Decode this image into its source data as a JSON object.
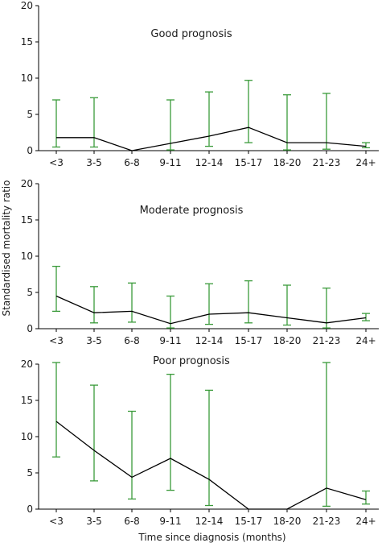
{
  "figure": {
    "xlabel": "Time since diagnosis (months)",
    "ylabel": "Standardised mortality ratio",
    "colors": {
      "ci": "#3a9a3a",
      "line": "#000000",
      "axis": "#000000"
    }
  },
  "chart_data": [
    {
      "type": "line",
      "title": "Good prognosis",
      "categories": [
        "<3",
        "3-5",
        "6-8",
        "9-11",
        "12-14",
        "15-17",
        "18-20",
        "21-23",
        "24+"
      ],
      "yticks": [
        0,
        5,
        10,
        15,
        20
      ],
      "ylim": [
        0,
        20
      ],
      "series": [
        {
          "values": [
            1.8,
            1.8,
            0,
            1.0,
            2.0,
            3.2,
            1.1,
            1.1,
            0.6
          ],
          "lower": [
            0.5,
            0.5,
            null,
            0.1,
            0.6,
            1.1,
            0.1,
            0.2,
            0.4
          ],
          "upper": [
            7.0,
            7.3,
            null,
            7.0,
            8.1,
            9.7,
            7.7,
            7.9,
            1.1
          ]
        }
      ],
      "grid": false
    },
    {
      "type": "line",
      "title": "Moderate prognosis",
      "categories": [
        "<3",
        "3-5",
        "6-8",
        "9-11",
        "12-14",
        "15-17",
        "18-20",
        "21-23",
        "24+"
      ],
      "yticks": [
        0,
        5,
        10,
        15,
        20
      ],
      "ylim": [
        0,
        20
      ],
      "series": [
        {
          "values": [
            4.5,
            2.2,
            2.4,
            0.7,
            2.0,
            2.2,
            1.5,
            0.8,
            1.5
          ],
          "lower": [
            2.4,
            0.8,
            0.9,
            0.1,
            0.6,
            0.8,
            0.5,
            0.1,
            1.1
          ],
          "upper": [
            8.6,
            5.8,
            6.3,
            4.5,
            6.2,
            6.6,
            6.0,
            5.6,
            2.1
          ]
        }
      ],
      "grid": false
    },
    {
      "type": "line",
      "title": "Poor prognosis",
      "categories": [
        "<3",
        "3-5",
        "6-8",
        "9-11",
        "12-14",
        "15-17",
        "18-20",
        "21-23",
        "24+"
      ],
      "yticks": [
        0,
        5,
        10,
        15,
        20
      ],
      "ylim": [
        0,
        20
      ],
      "series": [
        {
          "values": [
            12.1,
            8.1,
            4.4,
            7.0,
            4.1,
            0,
            0,
            2.9,
            1.3
          ],
          "lower": [
            7.2,
            3.9,
            1.4,
            2.6,
            0.5,
            null,
            null,
            0.4,
            0.7
          ],
          "upper": [
            20.5,
            17.1,
            13.5,
            18.6,
            16.4,
            null,
            null,
            20.3,
            2.5
          ]
        }
      ],
      "grid": false
    }
  ]
}
